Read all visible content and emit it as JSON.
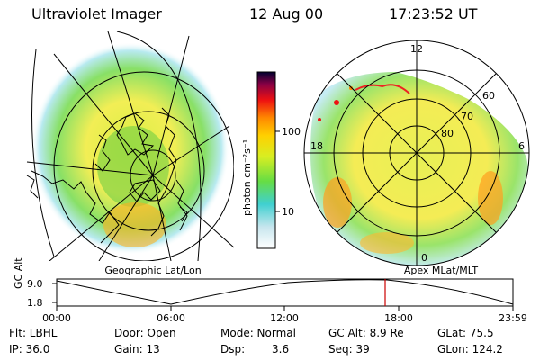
{
  "header": {
    "title": "Ultraviolet Imager",
    "date": "12 Aug 00",
    "time": "17:23:52 UT"
  },
  "colorbar": {
    "label": "photon cm⁻²s⁻¹",
    "ticks": [
      "100",
      "10"
    ]
  },
  "left_panel": {
    "caption": "Geographic Lat/Lon"
  },
  "right_panel": {
    "caption": "Apex MLat/MLT",
    "mlt_labels": {
      "top": "12",
      "left": "18",
      "right": "6",
      "bottom": "0"
    },
    "lat_labels": [
      "60",
      "70",
      "80"
    ]
  },
  "altitude_plot": {
    "ylabel": "GC Alt",
    "yticks": [
      "9.0",
      "1.8"
    ],
    "xticks": [
      "00:00",
      "06:00",
      "12:00",
      "18:00",
      "23:59"
    ]
  },
  "info": {
    "flt": "Flt: LBHL",
    "ip": "IP: 36.0",
    "door": "Door: Open",
    "gain": "Gain: 13",
    "mode": "Mode: Normal",
    "dsp_label": "Dsp:",
    "dsp_value": "3.6",
    "gcalt": "GC Alt: 8.9 Re",
    "seq": "Seq: 39",
    "glat": "GLat: 75.5",
    "glon": "GLon: 124.2"
  },
  "colors": {
    "colorbar": [
      "#ffffff",
      "#c8e6ee",
      "#40d0d0",
      "#66dd44",
      "#d8ee22",
      "#ffd000",
      "#ff8800",
      "#ee1111",
      "#880044",
      "#000030"
    ],
    "marker": "#cc0000"
  }
}
